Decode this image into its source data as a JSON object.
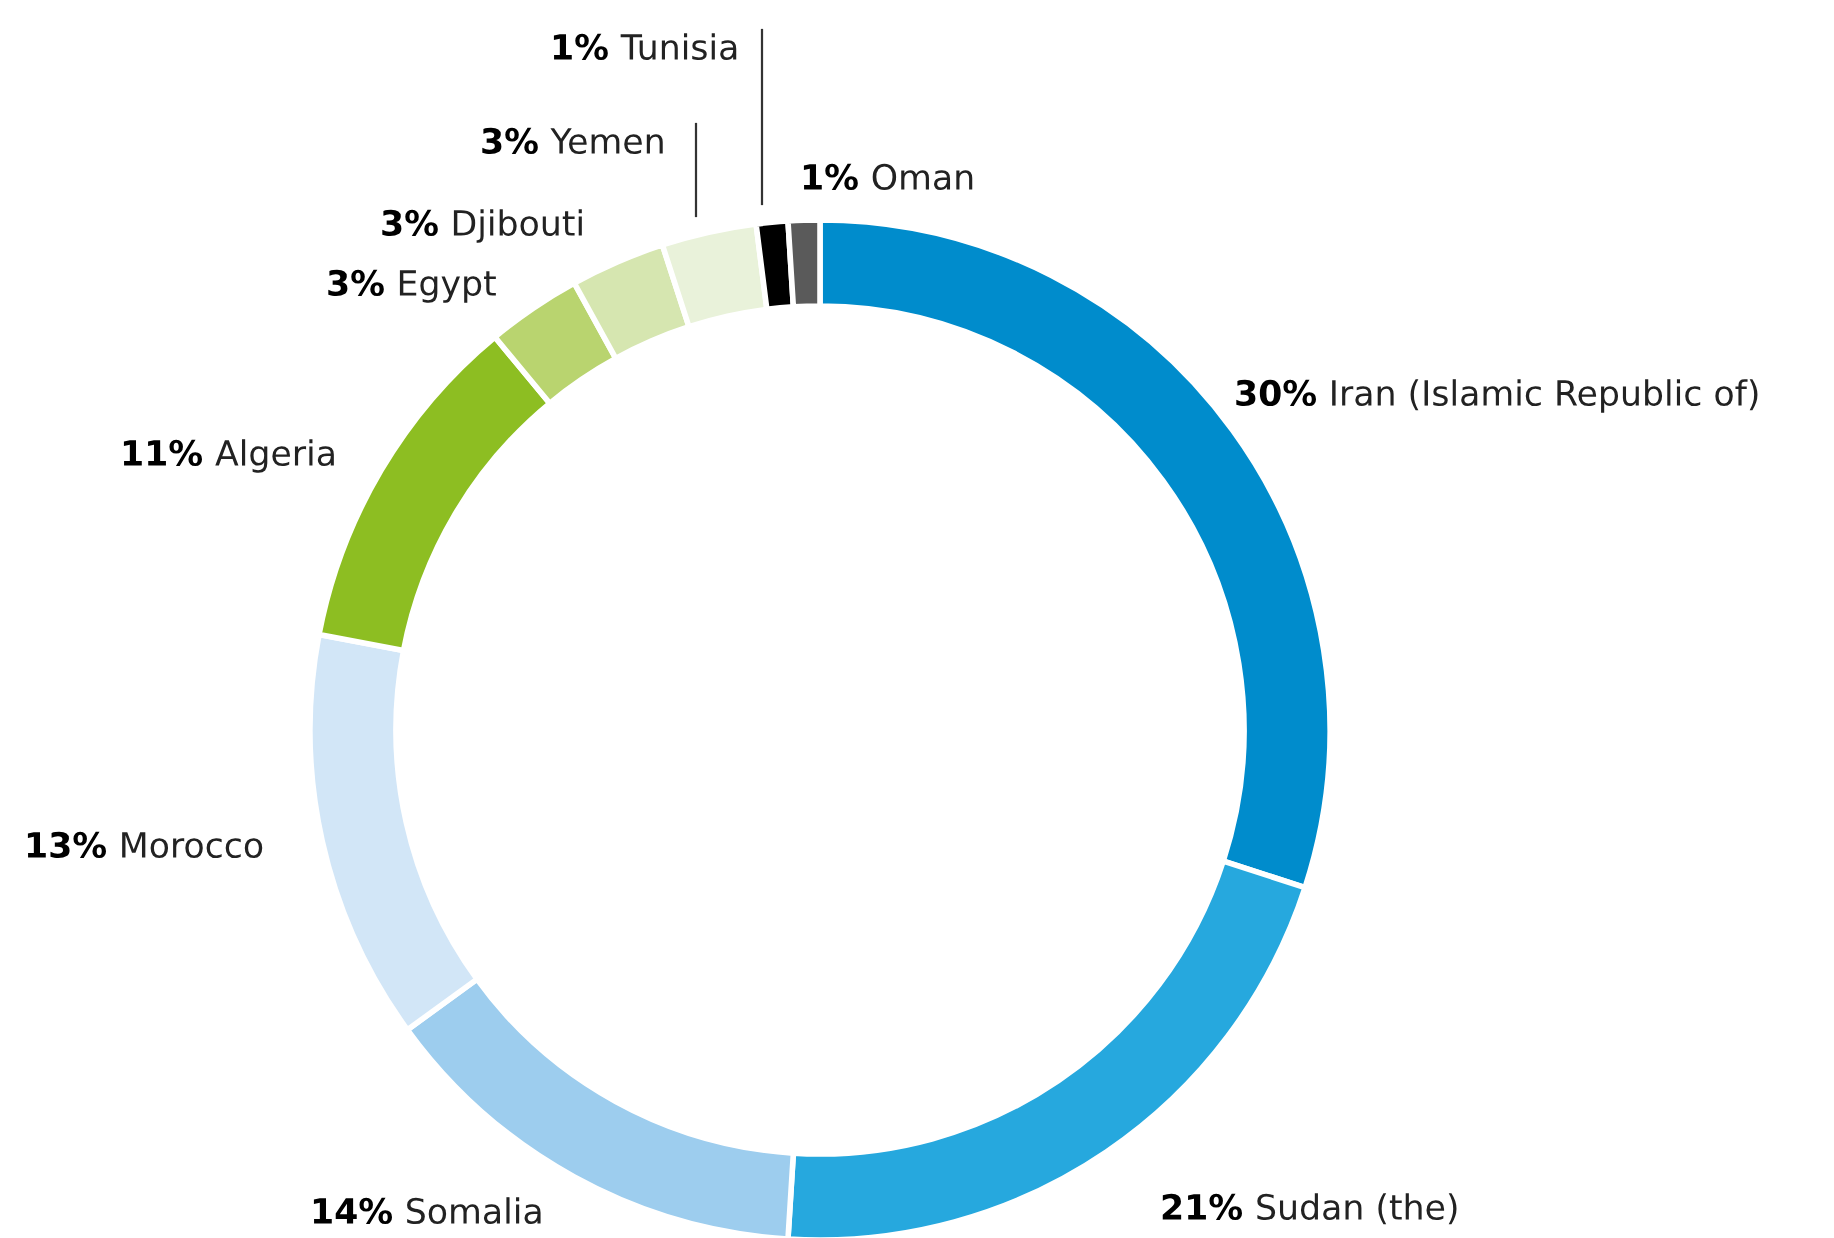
{
  "chart_data": {
    "type": "donut",
    "categories": [
      "Iran (Islamic Republic of)",
      "Sudan (the)",
      "Somalia",
      "Morocco",
      "Algeria",
      "Egypt",
      "Djibouti",
      "Yemen",
      "Tunisia",
      "Oman"
    ],
    "values": [
      30,
      21,
      14,
      13,
      11,
      3,
      3,
      3,
      1,
      1
    ],
    "value_labels": [
      "30%",
      "21%",
      "14%",
      "13%",
      "11%",
      "3%",
      "3%",
      "3%",
      "1%",
      "1%"
    ],
    "colors": [
      "#008ccc",
      "#26a8de",
      "#9dcdee",
      "#d2e6f7",
      "#8dbe22",
      "#b9d46f",
      "#d6e6b0",
      "#e9f2da",
      "#000000",
      "#5a5a5a"
    ]
  }
}
